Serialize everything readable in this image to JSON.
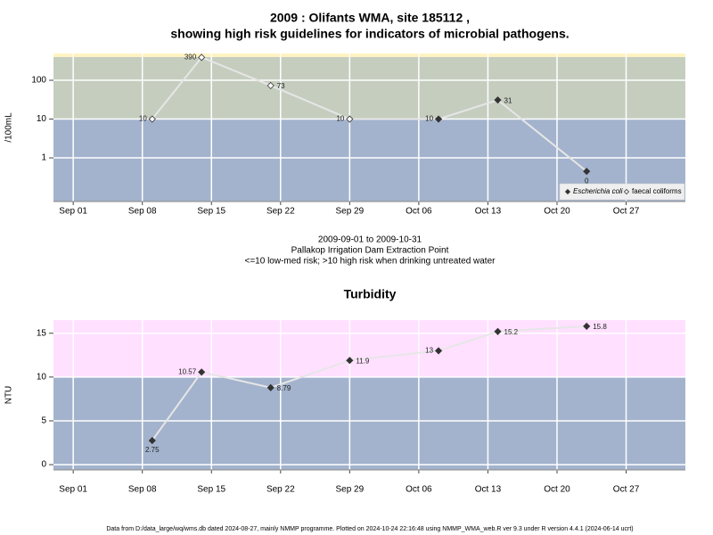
{
  "footer": "Data from D:/data_large/wq/wms.db dated 2024-08-27, mainly NMMP programme. Plotted on 2024-10-24 22:16:48 using NMMP_WMA_web.R ver 9.3 under R version 4.4.1 (2024-06-14 ucrt)",
  "chart_data": [
    {
      "type": "line",
      "title": [
        "2009 : Olifants WMA, site 185112 ,",
        "showing high risk guidelines for indicators of microbial pathogens."
      ],
      "subtitle": [
        "2009-09-01 to 2009-10-31",
        "Pallakop Irrigation Dam Extraction Point",
        "<=10 low-med risk; >10 high risk when drinking untreated water"
      ],
      "ylabel": "/100mL",
      "log_y": true,
      "grid": true,
      "x": [
        "2009-09-09",
        "2009-09-14",
        "2009-09-21",
        "2009-09-29",
        "2009-10-08",
        "2009-10-14",
        "2009-10-23"
      ],
      "xlim": [
        "2009-08-30",
        "2009-11-02"
      ],
      "xticks": [
        {
          "value": "2009-09-01",
          "label": "Sep 01"
        },
        {
          "value": "2009-09-08",
          "label": "Sep 08"
        },
        {
          "value": "2009-09-15",
          "label": "Sep 15"
        },
        {
          "value": "2009-09-22",
          "label": "Sep 22"
        },
        {
          "value": "2009-09-29",
          "label": "Sep 29"
        },
        {
          "value": "2009-10-06",
          "label": "Oct 06"
        },
        {
          "value": "2009-10-13",
          "label": "Oct 13"
        },
        {
          "value": "2009-10-20",
          "label": "Oct 20"
        },
        {
          "value": "2009-10-27",
          "label": "Oct 27"
        }
      ],
      "ylim": [
        0.075,
        490
      ],
      "yticks": [
        1,
        10,
        100
      ],
      "bands": [
        {
          "from": 0.075,
          "to": 10,
          "color": "#a3b3cd"
        },
        {
          "from": 10,
          "to": 400,
          "color": "#c5cdbf"
        },
        {
          "from": 400,
          "to": 490,
          "color": "#fff4c0"
        }
      ],
      "line_color": "#e6e6e6",
      "legend": "bottom-right",
      "series": [
        {
          "name": "Escherichia coli",
          "color": "#333333",
          "marker": "filled",
          "values": [
            null,
            null,
            null,
            null,
            10,
            31,
            0.45
          ],
          "value_labels": [
            null,
            null,
            null,
            null,
            null,
            null,
            "0"
          ]
        },
        {
          "name": "faecal coliforms",
          "color": "#333333",
          "marker": "open",
          "values": [
            10,
            390,
            73,
            10,
            null,
            null,
            null
          ]
        }
      ]
    },
    {
      "type": "line",
      "title": "Turbidity",
      "ylabel": "NTU",
      "log_y": false,
      "grid": true,
      "x": [
        "2009-09-09",
        "2009-09-14",
        "2009-09-21",
        "2009-09-29",
        "2009-10-08",
        "2009-10-14",
        "2009-10-23"
      ],
      "xlim": [
        "2009-08-30",
        "2009-11-02"
      ],
      "xticks": [
        {
          "value": "2009-09-01",
          "label": "Sep 01"
        },
        {
          "value": "2009-09-08",
          "label": "Sep 08"
        },
        {
          "value": "2009-09-15",
          "label": "Sep 15"
        },
        {
          "value": "2009-09-22",
          "label": "Sep 22"
        },
        {
          "value": "2009-09-29",
          "label": "Sep 29"
        },
        {
          "value": "2009-10-06",
          "label": "Oct 06"
        },
        {
          "value": "2009-10-13",
          "label": "Oct 13"
        },
        {
          "value": "2009-10-20",
          "label": "Oct 20"
        },
        {
          "value": "2009-10-27",
          "label": "Oct 27"
        }
      ],
      "ylim": [
        -0.6,
        16.5
      ],
      "yticks": [
        0,
        5,
        10,
        15
      ],
      "bands": [
        {
          "from": -0.6,
          "to": 10,
          "color": "#a3b3cd"
        },
        {
          "from": 10,
          "to": 16.5,
          "color": "#ffe0ff"
        }
      ],
      "line_color": "#e6e6e6",
      "series": [
        {
          "color": "#333333",
          "marker": "filled",
          "values": [
            2.75,
            10.57,
            8.79,
            11.9,
            13,
            15.2,
            15.8
          ]
        }
      ]
    }
  ]
}
